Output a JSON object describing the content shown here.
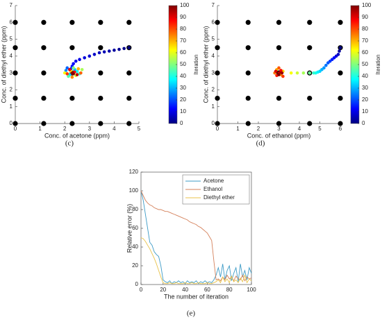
{
  "chart_data": [
    {
      "type": "scatter",
      "caption": "(c)",
      "xlabel": "Conc. of acetone (ppm)",
      "ylabel": "Conc. of diethyl ether (ppm)",
      "xlim": [
        0,
        5
      ],
      "xticks": [
        0,
        1,
        2,
        3,
        4,
        5
      ],
      "ylim": [
        0,
        7
      ],
      "yticks": [
        0,
        1,
        2,
        3,
        4,
        5,
        6,
        7
      ],
      "grid_points": {
        "color": "#000000",
        "x": [
          0,
          1.15,
          2.3,
          3.45,
          4.6,
          0,
          1.15,
          2.3,
          3.45,
          4.6,
          0,
          1.15,
          2.3,
          3.45,
          4.6,
          0,
          1.15,
          2.3,
          3.45,
          4.6,
          0,
          1.15,
          2.3,
          3.45,
          4.6
        ],
        "y": [
          0,
          0,
          0,
          0,
          0,
          1.5,
          1.5,
          1.5,
          1.5,
          1.5,
          3,
          3,
          3,
          3,
          3,
          4.5,
          4.5,
          4.5,
          4.5,
          4.5,
          6,
          6,
          6,
          6,
          6
        ]
      },
      "trajectory": {
        "x": [
          4.6,
          4.4,
          4.2,
          4.0,
          3.8,
          3.6,
          3.4,
          3.2,
          3.0,
          2.8,
          2.6,
          2.45,
          2.35,
          2.3,
          2.25,
          2.1,
          2.05,
          2.4,
          2.2,
          2.5,
          2.6,
          2.15,
          2.35,
          2.7,
          2.45,
          2.0,
          2.25,
          2.55,
          2.3,
          2.65,
          2.1,
          2.4,
          2.2,
          2.5,
          2.3,
          2.35
        ],
        "y": [
          4.5,
          4.45,
          4.4,
          4.35,
          4.3,
          4.25,
          4.2,
          4.1,
          4.0,
          3.9,
          3.8,
          3.7,
          3.55,
          3.4,
          3.25,
          3.3,
          3.15,
          3.2,
          2.9,
          3.1,
          2.95,
          2.8,
          3.3,
          3.2,
          2.85,
          3.0,
          3.1,
          3.25,
          2.75,
          3.0,
          2.95,
          3.05,
          3.2,
          2.9,
          3.0,
          2.95
        ],
        "iterations": [
          0,
          1,
          2,
          3,
          4,
          5,
          6,
          7,
          8,
          9,
          10,
          11,
          12,
          14,
          16,
          22,
          26,
          30,
          34,
          38,
          42,
          46,
          50,
          54,
          58,
          62,
          66,
          70,
          74,
          78,
          82,
          86,
          90,
          94,
          98,
          100
        ]
      },
      "colormap": "jet",
      "clim": [
        0,
        100
      ],
      "cticks": [
        0,
        10,
        20,
        30,
        40,
        50,
        60,
        70,
        80,
        90,
        100
      ],
      "colorbar_label": "Iteration"
    },
    {
      "type": "scatter",
      "caption": "(d)",
      "xlabel": "Conc. of ethanol (ppm)",
      "ylabel": "Conc. of diethyl ether (ppm)",
      "xlim": [
        0,
        6
      ],
      "xticks": [
        0,
        1,
        2,
        3,
        4,
        5,
        6
      ],
      "ylim": [
        0,
        7
      ],
      "yticks": [
        0,
        1,
        2,
        3,
        4,
        5,
        6,
        7
      ],
      "grid_points": {
        "color": "#000000",
        "x": [
          0,
          1.5,
          3,
          4.5,
          6,
          0,
          1.5,
          3,
          4.5,
          6,
          0,
          1.5,
          3,
          4.5,
          6,
          0,
          1.5,
          3,
          4.5,
          6,
          0,
          1.5,
          3,
          4.5,
          6
        ],
        "y": [
          0,
          0,
          0,
          0,
          0,
          1.5,
          1.5,
          1.5,
          1.5,
          1.5,
          3,
          3,
          3,
          3,
          3,
          4.5,
          4.5,
          4.5,
          4.5,
          4.5,
          6,
          6,
          6,
          6,
          6
        ]
      },
      "trajectory": {
        "x": [
          6,
          5.95,
          5.9,
          5.8,
          5.7,
          5.6,
          5.5,
          5.4,
          5.3,
          5.2,
          5.1,
          5.0,
          4.9,
          4.8,
          4.7,
          4.5,
          4.2,
          3.9,
          3.6,
          3.2,
          2.9,
          3.1,
          2.8,
          3.0,
          3.2,
          2.9,
          3.1,
          2.85,
          3.0,
          3.15,
          3.0
        ],
        "y": [
          4.5,
          4.3,
          4.1,
          4.0,
          3.9,
          3.8,
          3.7,
          3.6,
          3.45,
          3.3,
          3.2,
          3.1,
          3.05,
          3.0,
          3.0,
          3.0,
          3.0,
          3.0,
          3.0,
          3.1,
          3.2,
          2.9,
          3.0,
          3.3,
          2.8,
          2.85,
          3.15,
          3.1,
          3.0,
          3.0,
          2.9
        ],
        "iterations": [
          0,
          3,
          6,
          9,
          12,
          15,
          18,
          21,
          24,
          27,
          30,
          33,
          36,
          39,
          42,
          48,
          54,
          58,
          62,
          66,
          70,
          73,
          76,
          79,
          82,
          85,
          88,
          91,
          94,
          97,
          100
        ]
      },
      "colormap": "jet",
      "clim": [
        0,
        100
      ],
      "cticks": [
        0,
        10,
        20,
        30,
        40,
        50,
        60,
        70,
        80,
        90,
        100
      ],
      "colorbar_label": "Iteration"
    },
    {
      "type": "line",
      "caption": "(e)",
      "xlabel": "The number of iteration",
      "ylabel": "Relative error (%)",
      "xlim": [
        0,
        100
      ],
      "xticks": [
        0,
        20,
        40,
        60,
        80,
        100
      ],
      "ylim": [
        0,
        120
      ],
      "yticks": [
        0,
        20,
        40,
        60,
        80,
        100,
        120
      ],
      "legend": "upper right",
      "x": [
        0,
        2,
        4,
        6,
        8,
        10,
        12,
        14,
        16,
        18,
        20,
        22,
        24,
        26,
        28,
        30,
        32,
        34,
        36,
        38,
        40,
        42,
        44,
        46,
        48,
        50,
        52,
        54,
        56,
        58,
        60,
        62,
        64,
        66,
        68,
        70,
        72,
        74,
        76,
        78,
        80,
        82,
        84,
        86,
        88,
        90,
        92,
        94,
        96,
        98,
        100
      ],
      "series": [
        {
          "name": "Acetone",
          "color": "#3d9bc6",
          "values": [
            100,
            90,
            75,
            60,
            45,
            42,
            35,
            32,
            30,
            20,
            5,
            3,
            2,
            4,
            1,
            3,
            2,
            4,
            2,
            3,
            1,
            4,
            2,
            3,
            2,
            4,
            1,
            3,
            2,
            4,
            2,
            3,
            2,
            5,
            10,
            18,
            8,
            22,
            5,
            15,
            20,
            4,
            12,
            18,
            3,
            22,
            8,
            15,
            5,
            18,
            12
          ]
        },
        {
          "name": "Ethanol",
          "color": "#d4805a",
          "values": [
            100,
            95,
            90,
            87,
            85,
            84,
            82,
            81,
            80,
            80,
            79,
            78,
            78,
            77,
            76,
            75,
            74,
            73,
            72,
            71,
            70,
            69,
            67,
            66,
            65,
            64,
            62,
            61,
            59,
            57,
            55,
            51,
            47,
            25,
            5,
            6,
            4,
            8,
            5,
            10,
            6,
            8,
            4,
            9,
            6,
            5,
            10,
            4,
            8,
            6,
            7
          ]
        },
        {
          "name": "Diethyl ether",
          "color": "#e8c34a",
          "values": [
            50,
            49,
            46,
            42,
            38,
            33,
            28,
            22,
            15,
            8,
            2,
            1,
            1,
            2,
            1,
            1,
            2,
            1,
            1,
            1,
            2,
            1,
            1,
            2,
            1,
            1,
            2,
            1,
            1,
            1,
            2,
            1,
            1,
            2,
            3,
            5,
            2,
            8,
            3,
            6,
            2,
            9,
            3,
            5,
            2,
            7,
            3,
            10,
            2,
            6,
            4
          ]
        }
      ]
    }
  ]
}
